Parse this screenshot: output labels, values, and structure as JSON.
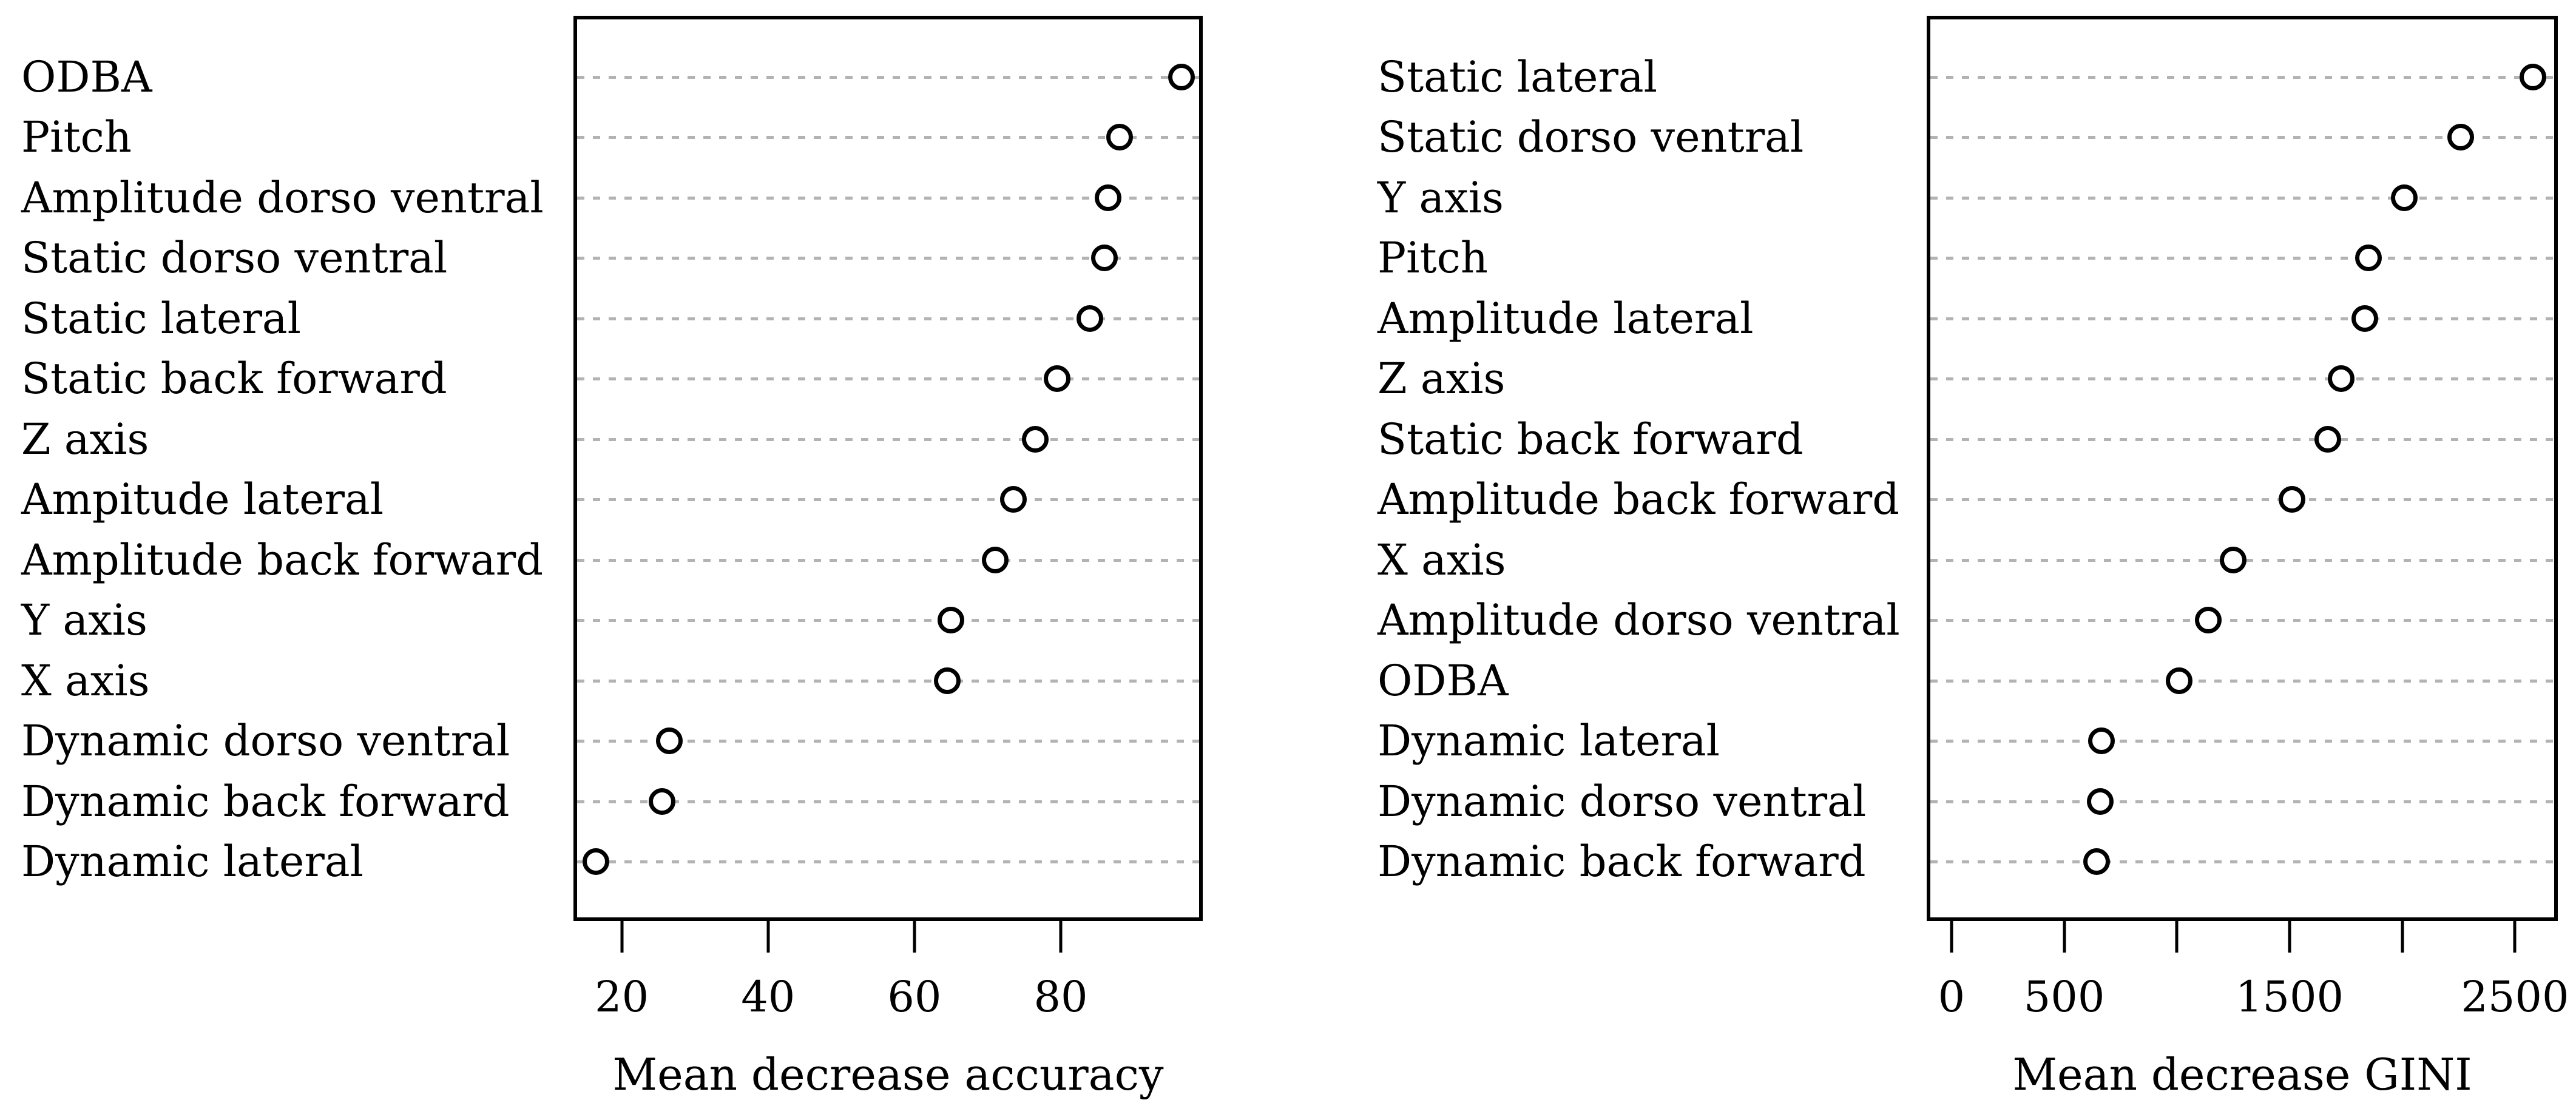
{
  "figure": {
    "kind": "random-forest variable importance dot plots",
    "background_color": "#ffffff",
    "colors": {
      "frame": "#000000",
      "grid": "#b3b3b3",
      "marker_stroke": "#000000",
      "marker_fill": "#ffffff",
      "text": "#000000"
    }
  },
  "chart_data": [
    {
      "type": "scatter",
      "variant": "horizontal-dot-plot",
      "title": "",
      "xlabel": "Mean decrease accuracy",
      "ylabel": "",
      "categories": [
        "ODBA",
        "Pitch",
        "Amplitude dorso ventral",
        "Static dorso ventral",
        "Static lateral",
        "Static back forward",
        "Z axis",
        "Ampitude lateral",
        "Amplitude back forward",
        "Y axis",
        "X axis",
        "Dynamic dorso ventral",
        "Dynamic back forward",
        "Dynamic lateral"
      ],
      "values": [
        96.5,
        88,
        86.5,
        86,
        84,
        79.5,
        76.5,
        73.5,
        71,
        65,
        64.5,
        26.5,
        25.5,
        16.5
      ],
      "xlim": [
        13.4,
        99.4
      ],
      "xticks": [
        20,
        40,
        60,
        80
      ],
      "xtick_labels": [
        "20",
        "40",
        "60",
        "80"
      ],
      "grid": "horizontal dotted lines",
      "legend": "none",
      "marker": "open-circle"
    },
    {
      "type": "scatter",
      "variant": "horizontal-dot-plot",
      "title": "",
      "xlabel": "Mean decrease GINI",
      "ylabel": "",
      "categories": [
        "Static lateral",
        "Static dorso ventral",
        "Y axis",
        "Pitch",
        "Amplitude lateral",
        "Z axis",
        "Static back forward",
        "Amplitude back forward",
        "X axis",
        "Amplitude dorso ventral",
        "ODBA",
        "Dynamic lateral",
        "Dynamic dorso ventral",
        "Dynamic back forward"
      ],
      "values": [
        2580,
        2260,
        2010,
        1850,
        1835,
        1730,
        1670,
        1510,
        1250,
        1140,
        1010,
        665,
        660,
        645
      ],
      "xlim": [
        -110,
        2690
      ],
      "xticks": [
        0,
        500,
        1000,
        1500,
        2000,
        2500
      ],
      "xtick_labels": [
        "0",
        "500",
        "",
        "1500",
        "",
        "2500"
      ],
      "grid": "horizontal dotted lines",
      "legend": "none",
      "marker": "open-circle"
    }
  ]
}
